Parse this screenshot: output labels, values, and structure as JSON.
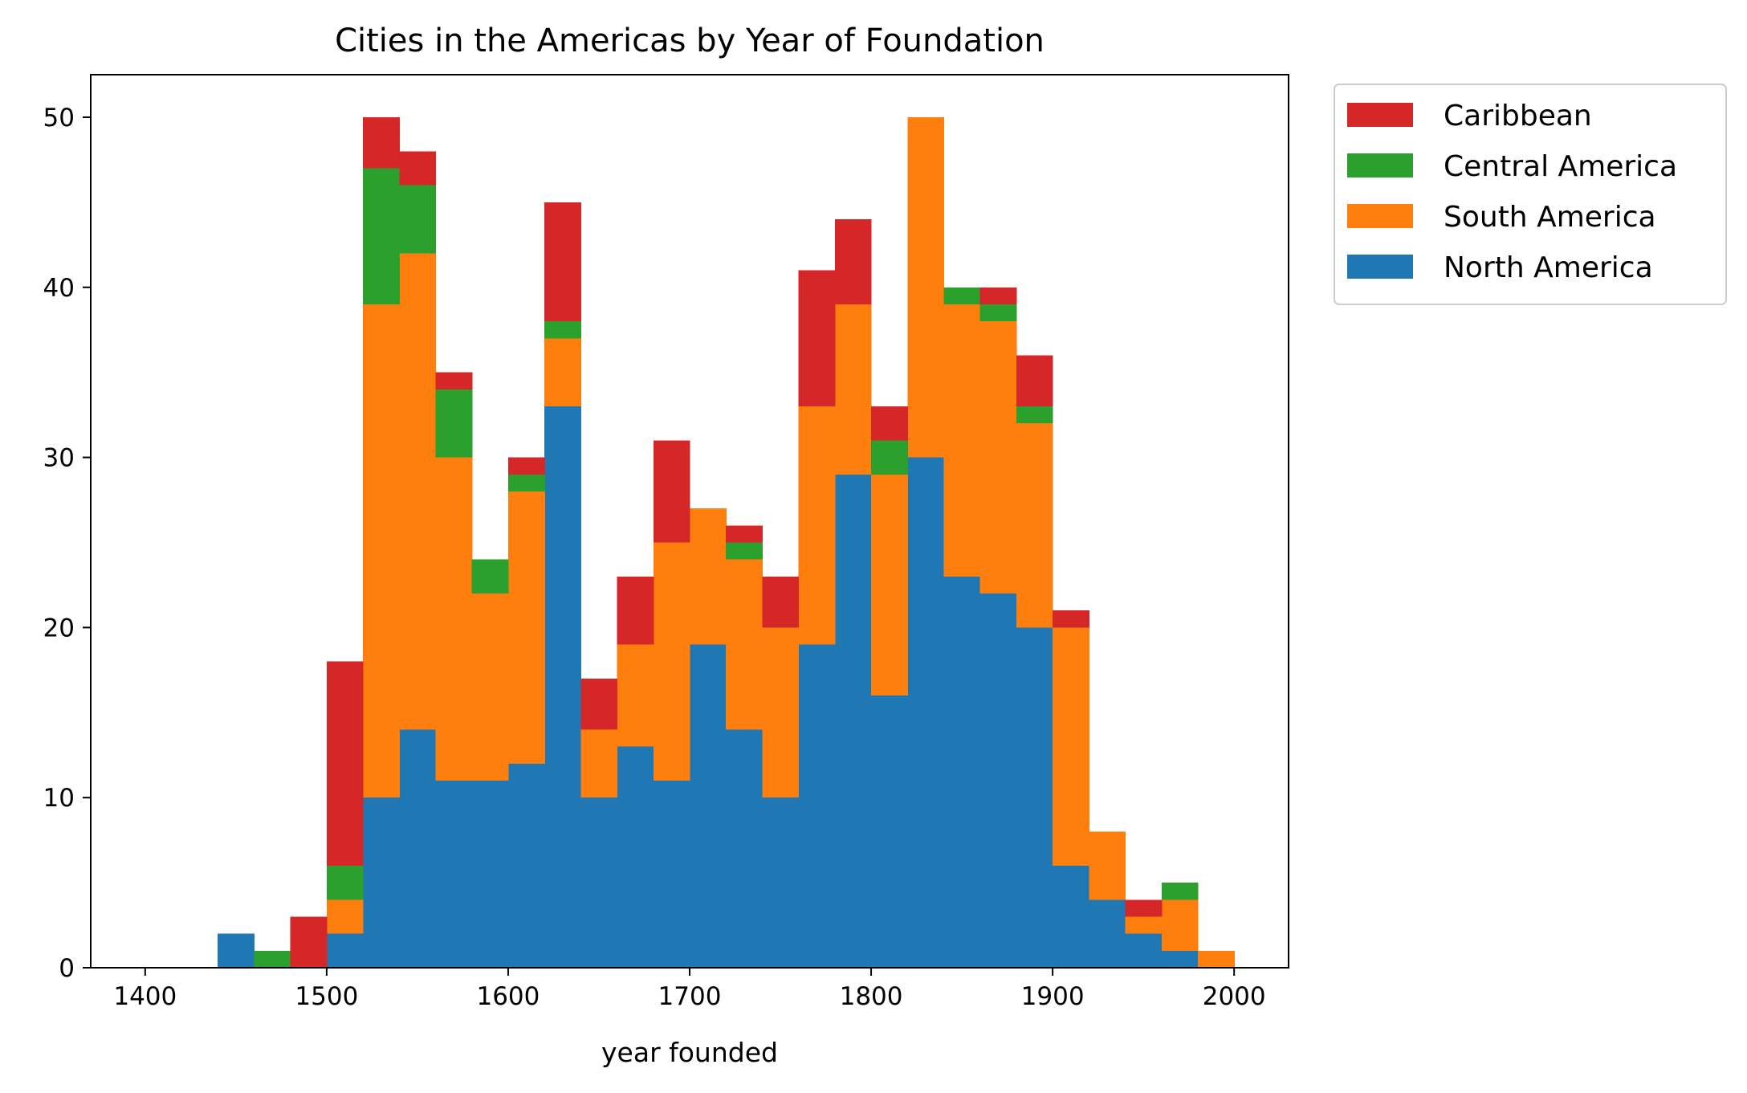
{
  "chart_data": {
    "type": "bar",
    "stacked": true,
    "title": "Cities in the Americas by Year of Foundation",
    "xlabel": "year founded",
    "ylabel": "",
    "xlim": [
      1370,
      2030
    ],
    "ylim": [
      0,
      52.5
    ],
    "xticks": [
      1400,
      1500,
      1600,
      1700,
      1800,
      1900,
      2000
    ],
    "yticks": [
      0,
      10,
      20,
      30,
      40,
      50
    ],
    "bin_edges": [
      1440,
      1460,
      1480,
      1500,
      1520,
      1540,
      1560,
      1580,
      1600,
      1620,
      1640,
      1660,
      1680,
      1700,
      1720,
      1740,
      1760,
      1780,
      1800,
      1820,
      1840,
      1860,
      1880,
      1900,
      1920,
      1940,
      1960,
      1980,
      2000
    ],
    "series": [
      {
        "name": "North America",
        "color": "#1f77b4",
        "values": [
          2,
          0,
          0,
          2,
          10,
          14,
          11,
          11,
          12,
          33,
          10,
          13,
          11,
          19,
          14,
          10,
          19,
          29,
          16,
          30,
          23,
          22,
          20,
          6,
          4,
          2,
          1,
          0
        ]
      },
      {
        "name": "South America",
        "color": "#ff7f0e",
        "values": [
          0,
          0,
          0,
          2,
          29,
          28,
          19,
          11,
          16,
          4,
          4,
          6,
          14,
          8,
          10,
          10,
          14,
          10,
          13,
          20,
          16,
          16,
          12,
          14,
          4,
          1,
          3,
          1
        ]
      },
      {
        "name": "Central America",
        "color": "#2ca02c",
        "values": [
          0,
          1,
          0,
          2,
          8,
          4,
          4,
          2,
          1,
          1,
          0,
          0,
          0,
          0,
          1,
          0,
          0,
          0,
          2,
          0,
          1,
          1,
          1,
          0,
          0,
          0,
          1,
          0
        ]
      },
      {
        "name": "Caribbean",
        "color": "#d62728",
        "values": [
          0,
          0,
          3,
          12,
          3,
          2,
          1,
          0,
          1,
          7,
          3,
          4,
          6,
          0,
          1,
          3,
          8,
          5,
          2,
          0,
          0,
          1,
          3,
          1,
          0,
          1,
          0,
          0
        ]
      }
    ],
    "legend": {
      "position": "outside-right",
      "order": [
        "Caribbean",
        "Central America",
        "South America",
        "North America"
      ]
    },
    "grid": false
  }
}
